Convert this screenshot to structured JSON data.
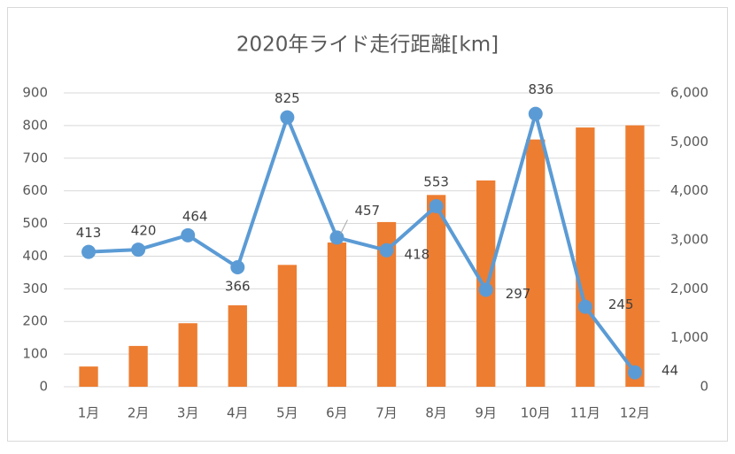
{
  "chart_data": {
    "type": "combo",
    "title": "2020年ライド走行距離[km]",
    "categories": [
      "1月",
      "2月",
      "3月",
      "4月",
      "5月",
      "6月",
      "7月",
      "8月",
      "9月",
      "10月",
      "11月",
      "12月"
    ],
    "series": [
      {
        "type": "bar",
        "axis": "y2",
        "color": "#ed7d31",
        "values": [
          413,
          833,
          1297,
          1663,
          2488,
          2945,
          3363,
          3916,
          4213,
          5049,
          5294,
          5338
        ]
      },
      {
        "type": "line",
        "color": "#5b9bd5",
        "values": [
          413,
          420,
          464,
          366,
          825,
          457,
          418,
          553,
          297,
          836,
          245,
          44
        ]
      }
    ],
    "ylim": [
      0,
      900
    ],
    "yticks": [
      0,
      100,
      200,
      300,
      400,
      500,
      600,
      700,
      800,
      900
    ],
    "y2lim": [
      0,
      6000
    ],
    "y2ticks": [
      0,
      {
        "value": 1000,
        "label": "1,000"
      },
      {
        "value": 2000,
        "label": "2,000"
      },
      {
        "value": 3000,
        "label": "3,000"
      },
      {
        "value": 4000,
        "label": "4,000"
      },
      {
        "value": 5000,
        "label": "5,000"
      },
      {
        "value": 6000,
        "label": "6,000"
      }
    ],
    "grid": true
  }
}
